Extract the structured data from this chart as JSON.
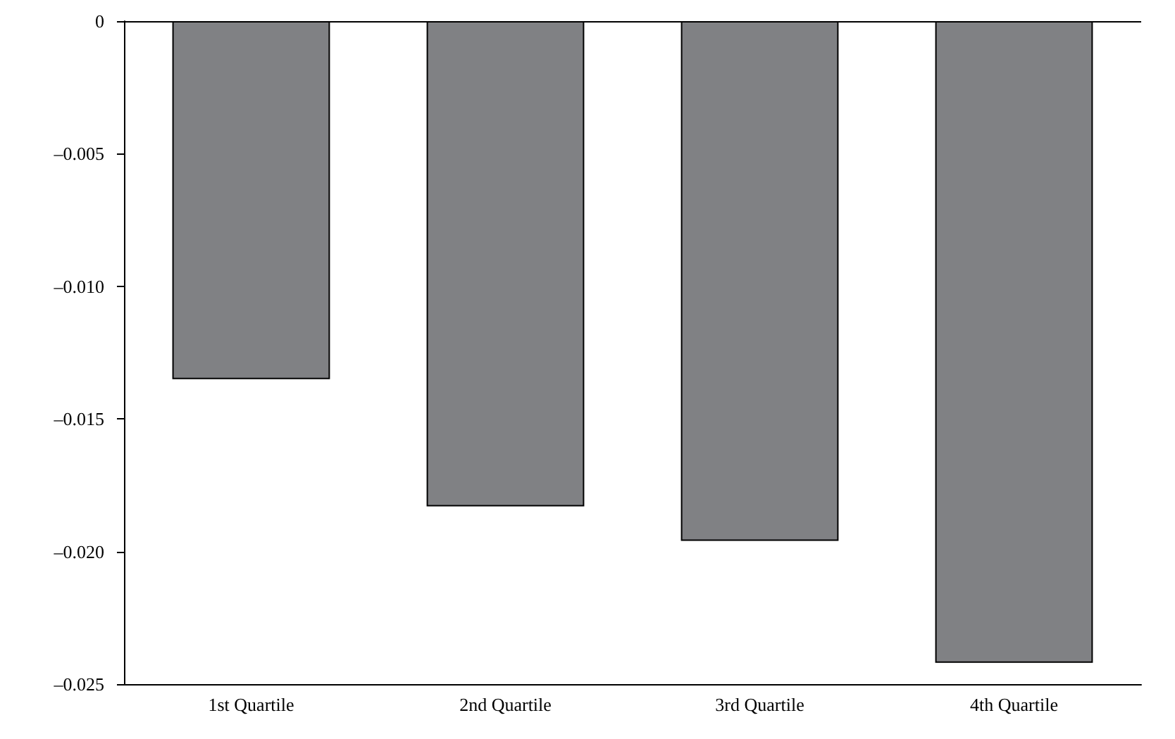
{
  "chart_data": {
    "type": "bar",
    "categories": [
      "1st Quartile",
      "2nd Quartile",
      "3rd Quartile",
      "4th Quartile"
    ],
    "values": [
      -0.0135,
      -0.0183,
      -0.0196,
      -0.0242
    ],
    "color": "#808184",
    "ylim": [
      -0.025,
      0
    ],
    "yticks": [
      {
        "value": -0.025,
        "label": "–0.025"
      },
      {
        "value": -0.02,
        "label": "–0.020"
      },
      {
        "value": -0.015,
        "label": "–0.015"
      },
      {
        "value": -0.01,
        "label": "–0.010"
      },
      {
        "value": -0.005,
        "label": "–0.005"
      },
      0
    ],
    "ref_lines": [
      {
        "axis": "y",
        "value": 0,
        "color": "#000000",
        "line_style": "solid"
      }
    ]
  }
}
